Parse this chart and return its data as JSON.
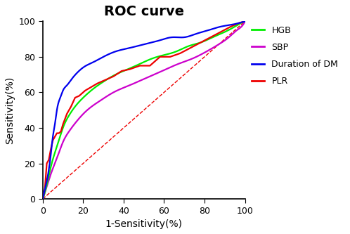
{
  "title": "ROC curve",
  "xlabel": "1-Sensitivity(%)",
  "ylabel": "Sensitivity(%)",
  "xlim": [
    0,
    100
  ],
  "ylim": [
    0,
    100
  ],
  "xticks": [
    0,
    20,
    40,
    60,
    80,
    100
  ],
  "yticks": [
    0,
    20,
    40,
    60,
    80,
    100
  ],
  "title_fontsize": 14,
  "axis_label_fontsize": 10,
  "tick_fontsize": 9,
  "colors": {
    "HGB": "#00ee00",
    "SBP": "#cc00cc",
    "DM": "#0000ee",
    "PLR": "#ee0000",
    "diagonal": "#ee0000"
  },
  "legend_labels": [
    "HGB",
    "SBP",
    "Duration of DM",
    "PLR"
  ],
  "legend_fontsize": 9,
  "dm_fpr": [
    0,
    2,
    4,
    5,
    6,
    7,
    8,
    9,
    10,
    12,
    14,
    17,
    20,
    25,
    30,
    36,
    43,
    50,
    57,
    64,
    70,
    76,
    82,
    88,
    93,
    97,
    100
  ],
  "dm_tpr": [
    0,
    10,
    25,
    35,
    42,
    50,
    55,
    58,
    61,
    64,
    67,
    71,
    74,
    77,
    80,
    83,
    85,
    87,
    89,
    91,
    91,
    93,
    95,
    97,
    98,
    99,
    100
  ],
  "hgb_fpr": [
    0,
    2,
    4,
    6,
    8,
    10,
    13,
    16,
    20,
    25,
    30,
    36,
    42,
    48,
    54,
    60,
    66,
    72,
    78,
    84,
    90,
    95,
    98,
    100
  ],
  "hgb_tpr": [
    0,
    8,
    18,
    26,
    33,
    40,
    47,
    52,
    57,
    62,
    66,
    70,
    73,
    76,
    79,
    81,
    83,
    86,
    88,
    91,
    94,
    97,
    99,
    100
  ],
  "sbp_fpr": [
    0,
    2,
    4,
    6,
    8,
    10,
    13,
    17,
    22,
    28,
    35,
    43,
    51,
    59,
    67,
    74,
    81,
    87,
    92,
    96,
    99,
    100
  ],
  "sbp_tpr": [
    0,
    7,
    14,
    20,
    26,
    32,
    38,
    44,
    50,
    55,
    60,
    64,
    68,
    72,
    76,
    79,
    83,
    87,
    91,
    95,
    98,
    100
  ],
  "plr_fpr": [
    0,
    1,
    2,
    3,
    4,
    5,
    6,
    7,
    8,
    9,
    10,
    12,
    14,
    16,
    18,
    21,
    24,
    27,
    31,
    35,
    39,
    43,
    48,
    53,
    58,
    63,
    68,
    73,
    78,
    83,
    88,
    93,
    97,
    100
  ],
  "plr_tpr": [
    0,
    5,
    20,
    22,
    28,
    33,
    35,
    37,
    37,
    38,
    42,
    48,
    52,
    57,
    58,
    61,
    63,
    65,
    67,
    69,
    72,
    73,
    75,
    75,
    80,
    80,
    82,
    85,
    88,
    91,
    94,
    97,
    99,
    100
  ]
}
